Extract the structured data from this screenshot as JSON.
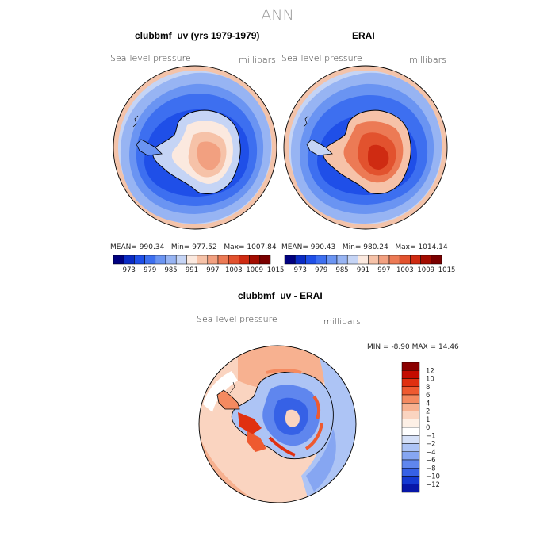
{
  "page_title": "ANN",
  "chart_data": [
    {
      "type": "heatmap",
      "title": "clubbmf_uv (yrs 1979-1979)",
      "variable_label": "Sea-level pressure",
      "units": "millibars",
      "stats": {
        "mean_label": "MEAN=",
        "mean": "990.34",
        "min_label": "Min=",
        "min": "977.52",
        "max_label": "Max=",
        "max": "1007.84"
      },
      "levels": [
        973,
        979,
        985,
        991,
        997,
        1003,
        1009,
        1015
      ],
      "colors": [
        "#00007f",
        "#0a2bc4",
        "#1f4fe8",
        "#3d6ff0",
        "#6a94f2",
        "#97b4f3",
        "#c5d4f5",
        "#fbe9df",
        "#f6c2a8",
        "#f2a080",
        "#ec7a55",
        "#e2522e",
        "#cf2b12",
        "#a30c00",
        "#7a0000"
      ]
    },
    {
      "type": "heatmap",
      "title": "ERAI",
      "variable_label": "Sea-level pressure",
      "units": "millibars",
      "stats": {
        "mean_label": "MEAN=",
        "mean": "990.43",
        "min_label": "Min=",
        "min": "980.24",
        "max_label": "Max=",
        "max": "1014.14"
      },
      "levels": [
        973,
        979,
        985,
        991,
        997,
        1003,
        1009,
        1015
      ],
      "colors": [
        "#00007f",
        "#0a2bc4",
        "#1f4fe8",
        "#3d6ff0",
        "#6a94f2",
        "#97b4f3",
        "#c5d4f5",
        "#fbe9df",
        "#f6c2a8",
        "#f2a080",
        "#ec7a55",
        "#e2522e",
        "#cf2b12",
        "#a30c00",
        "#7a0000"
      ]
    },
    {
      "type": "heatmap",
      "title": "clubbmf_uv - ERAI",
      "variable_label": "Sea-level pressure",
      "units": "millibars",
      "stats": {
        "min_label": "MIN =",
        "min": "-8.90",
        "max_label": "MAX =",
        "max": "14.46"
      },
      "levels": [
        "12",
        "10",
        "8",
        "6",
        "4",
        "2",
        "1",
        "0",
        "−1",
        "−2",
        "−4",
        "−6",
        "−8",
        "−10",
        "−12"
      ],
      "colors": [
        "#8b0000",
        "#c40c00",
        "#e03010",
        "#ee5a30",
        "#f48a60",
        "#f7b190",
        "#fad4c0",
        "#fdf0e6",
        "#ffffff",
        "#d5e0f7",
        "#adc4f5",
        "#86a6f2",
        "#5f86ee",
        "#3661e6",
        "#1439d2",
        "#0716a8"
      ]
    }
  ]
}
